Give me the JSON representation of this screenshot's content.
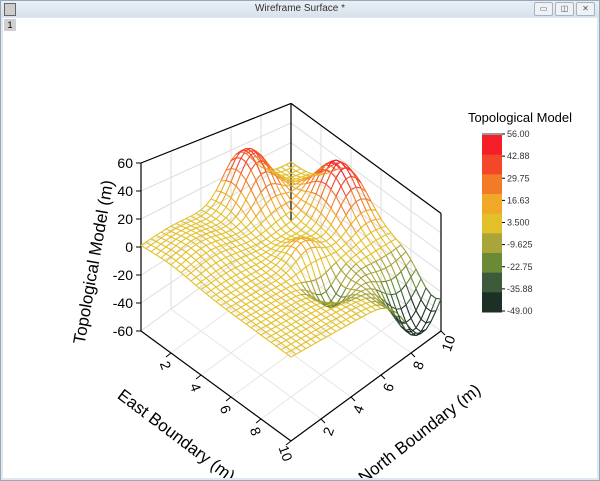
{
  "window": {
    "title": "Wireframe Surface *",
    "layer_tab": "1",
    "buttons": [
      "minimize",
      "restore",
      "close"
    ]
  },
  "chart_data": {
    "type": "wireframe-surface-3d",
    "xlabel": "East Boundary (m)",
    "ylabel": "North Boundary (m)",
    "zlabel": "Topological Model (m)",
    "xlim": [
      0,
      10
    ],
    "ylim": [
      0,
      10
    ],
    "zlim": [
      -60,
      60
    ],
    "xticks": [
      "2",
      "4",
      "6",
      "8",
      "10"
    ],
    "yticks": [
      "2",
      "4",
      "6",
      "8",
      "10"
    ],
    "zticks": [
      "-60",
      "-40",
      "-20",
      "0",
      "20",
      "40",
      "60"
    ],
    "colorbar": {
      "title": "Topological Model",
      "levels": [
        "56.00",
        "42.88",
        "29.75",
        "16.63",
        "3.500",
        "-9.625",
        "-22.75",
        "-35.88",
        "-49.00"
      ],
      "range": [
        -49,
        56
      ],
      "colors": [
        "#1d3026",
        "#3d5a3a",
        "#6b8a35",
        "#a9a53a",
        "#e3c02a",
        "#f0a828",
        "#f37a28",
        "#f4472a",
        "#f41e28"
      ]
    }
  }
}
